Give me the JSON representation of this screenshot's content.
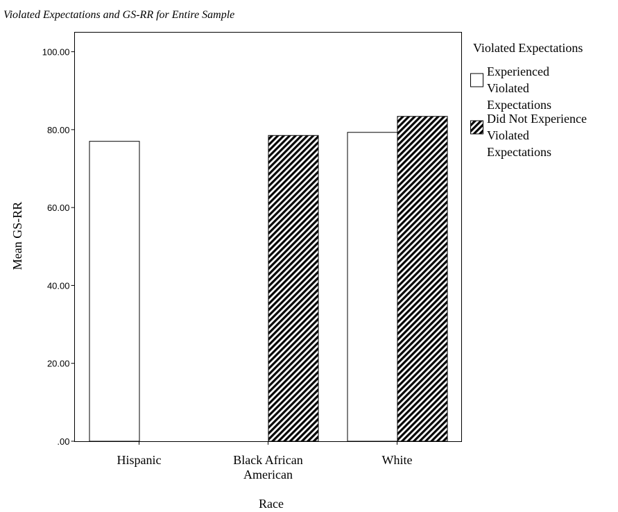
{
  "chart_data": {
    "type": "bar",
    "title": "Violated Expectations and GS-RR for Entire Sample",
    "xlabel": "Race",
    "ylabel": "Mean GS-RR",
    "categories": [
      [
        "Hispanic"
      ],
      [
        "Black African",
        "American"
      ],
      [
        "White"
      ]
    ],
    "series": [
      {
        "name": "Experienced Violated Expectations",
        "legend_lines": [
          "Experienced",
          "Violated",
          "Expectations"
        ],
        "fill": "white",
        "values": [
          77.0,
          null,
          79.3
        ]
      },
      {
        "name": "Did Not Experience Violated Expectations",
        "legend_lines": [
          "Did Not Experience",
          "Violated",
          "Expectations"
        ],
        "fill": "hatch",
        "values": [
          null,
          78.5,
          83.4
        ]
      }
    ],
    "ylim": [
      0,
      105
    ],
    "yticks": [
      0,
      20,
      40,
      60,
      80,
      100
    ],
    "ytick_labels": [
      ".00",
      "20.00",
      "40.00",
      "60.00",
      "80.00",
      "100.00"
    ],
    "legend_title": "Violated Expectations",
    "legend_position": "right",
    "grid": false
  }
}
